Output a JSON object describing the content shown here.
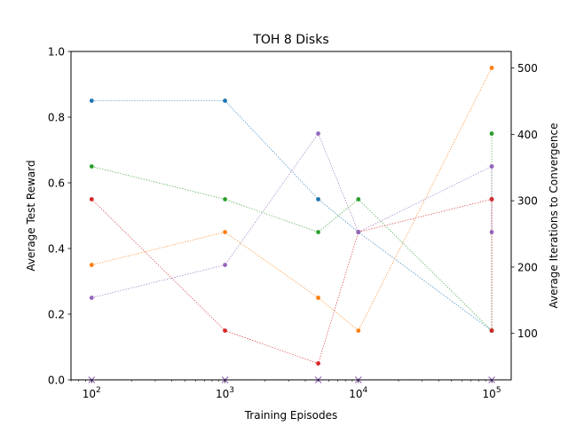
{
  "chart_data": {
    "type": "line",
    "title": "TOH 8 Disks",
    "xlabel": "Training Episodes",
    "ylabel_left": "Average Test Reward",
    "ylabel_right": "Average Iterations to Convergence",
    "x_scale": "log",
    "xlim": [
      70,
      140000
    ],
    "ylim_left": [
      0,
      1.0
    ],
    "ylim_right": [
      30,
      525
    ],
    "x_ticks": [
      {
        "value": 100,
        "base": "10",
        "exp": "2"
      },
      {
        "value": 1000,
        "base": "10",
        "exp": "3"
      },
      {
        "value": 10000,
        "base": "10",
        "exp": "4"
      },
      {
        "value": 100000,
        "base": "10",
        "exp": "5"
      }
    ],
    "y_left_ticks": [
      "0.0",
      "0.2",
      "0.4",
      "0.6",
      "0.8",
      "1.0"
    ],
    "y_right_ticks": [
      "100",
      "200",
      "300",
      "400",
      "500"
    ],
    "x": [
      100,
      1000,
      5000,
      10000,
      100000
    ],
    "series": [
      {
        "color": "#1f77b4",
        "values": [
          0.85,
          0.85,
          0.55,
          0.45,
          0.15
        ]
      },
      {
        "color": "#ff7f0e",
        "values": [
          0.35,
          0.45,
          0.25,
          0.15,
          0.95
        ]
      },
      {
        "color": "#2ca02c",
        "values": [
          0.65,
          0.55,
          0.45,
          0.55,
          0.15
        ],
        "end_values": [
          0.15,
          0.75
        ]
      },
      {
        "color": "#d62728",
        "values": [
          0.55,
          0.15,
          0.05,
          0.45,
          0.55
        ],
        "end_values": [
          0.55,
          0.15
        ]
      },
      {
        "color": "#9467bd",
        "values": [
          0.25,
          0.35,
          0.75,
          0.45,
          0.65
        ],
        "end_values": [
          0.65,
          0.45
        ]
      }
    ],
    "baseline": {
      "value": 0.0,
      "marker": "x",
      "color": "#9467bd"
    },
    "grid": false
  }
}
